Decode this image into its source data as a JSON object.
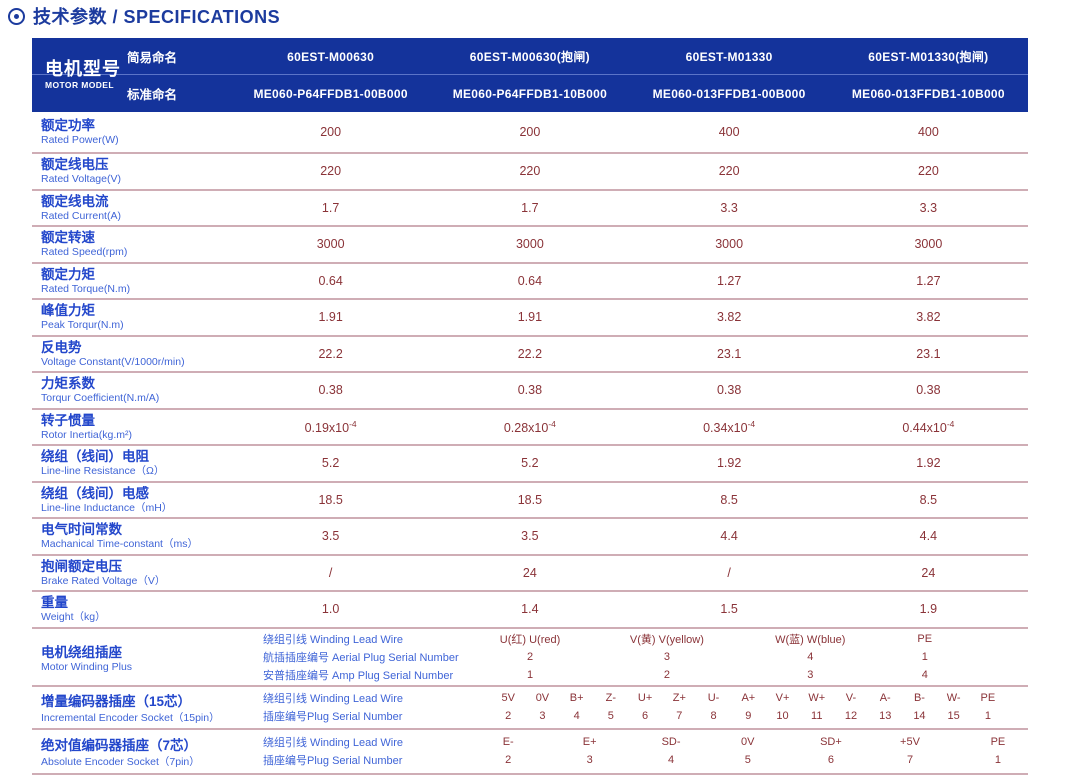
{
  "title": "技术参数 / SPECIFICATIONS",
  "header": {
    "model_label_zh": "电机型号",
    "model_label_en": "MOTOR MODEL",
    "simple_label": "简易命名",
    "standard_label": "标准命名",
    "simple_names": [
      "60EST-M00630",
      "60EST-M00630(抱闸)",
      "60EST-M01330",
      "60EST-M01330(抱闸)"
    ],
    "standard_names": [
      "ME060-P64FFDB1-00B000",
      "ME060-P64FFDB1-10B000",
      "ME060-013FFDB1-00B000",
      "ME060-013FFDB1-10B000"
    ]
  },
  "rows": [
    {
      "zh": "额定功率",
      "en": "Rated Power(W)",
      "values": [
        "200",
        "200",
        "400",
        "400"
      ]
    },
    {
      "zh": "额定线电压",
      "en": "Rated Voltage(V)",
      "values": [
        "220",
        "220",
        "220",
        "220"
      ]
    },
    {
      "zh": "额定线电流",
      "en": "Rated Current(A)",
      "values": [
        "1.7",
        "1.7",
        "3.3",
        "3.3"
      ]
    },
    {
      "zh": "额定转速",
      "en": "Rated Speed(rpm)",
      "values": [
        "3000",
        "3000",
        "3000",
        "3000"
      ]
    },
    {
      "zh": "额定力矩",
      "en": "Rated Torque(N.m)",
      "values": [
        "0.64",
        "0.64",
        "1.27",
        "1.27"
      ]
    },
    {
      "zh": "峰值力矩",
      "en": "Peak Torqur(N.m)",
      "values": [
        "1.91",
        "1.91",
        "3.82",
        "3.82"
      ]
    },
    {
      "zh": "反电势",
      "en": "Voltage Constant(V/1000r/min)",
      "values": [
        "22.2",
        "22.2",
        "23.1",
        "23.1"
      ]
    },
    {
      "zh": "力矩系数",
      "en": "Torqur Coefficient(N.m/A)",
      "values": [
        "0.38",
        "0.38",
        "0.38",
        "0.38"
      ]
    },
    {
      "zh": "转子惯量",
      "en": "Rotor Inertia(kg.m²)",
      "values": [
        "0.19x10",
        "0.28x10",
        "0.34x10",
        "0.44x10"
      ],
      "sup": "-4"
    },
    {
      "zh": "绕组（线间）电阻",
      "en": "Line-line Resistance（Ω）",
      "values": [
        "5.2",
        "5.2",
        "1.92",
        "1.92"
      ]
    },
    {
      "zh": "绕组（线间）电感",
      "en": "Line-line Inductance（mH）",
      "values": [
        "18.5",
        "18.5",
        "8.5",
        "8.5"
      ]
    },
    {
      "zh": "电气时间常数",
      "en": "Machanical Time-constant（ms）",
      "values": [
        "3.5",
        "3.5",
        "4.4",
        "4.4"
      ]
    },
    {
      "zh": "抱闸额定电压",
      "en": "Brake Rated Voltage（V）",
      "values": [
        "/",
        "24",
        "/",
        "24"
      ]
    },
    {
      "zh": "重量",
      "en": "Weight（kg）",
      "values": [
        "1.0",
        "1.4",
        "1.5",
        "1.9"
      ]
    }
  ],
  "winding": {
    "zh": "电机绕组插座",
    "en": "Motor Winding Plus",
    "sub1": "绕组引线 Winding Lead Wire",
    "sub2": "航插插座编号 Aerial Plug Serial Number",
    "sub3": "安普插座编号 Amp Plug Serial Number",
    "cols": [
      {
        "h": "U(红) U(red)",
        "aerial": "2",
        "amp": "1"
      },
      {
        "h": "V(黄) V(yellow)",
        "aerial": "3",
        "amp": "2"
      },
      {
        "h": "W(蓝) W(blue)",
        "aerial": "4",
        "amp": "3"
      },
      {
        "h": "PE",
        "aerial": "1",
        "amp": "4"
      }
    ]
  },
  "incremental": {
    "zh": "增量编码器插座（15芯）",
    "en": "Incremental Encoder Socket（15pin）",
    "sub1": "绕组引线 Winding Lead Wire",
    "sub2": "插座编号Plug Serial Number",
    "cols": [
      {
        "h": "5V",
        "n": "2"
      },
      {
        "h": "0V",
        "n": "3"
      },
      {
        "h": "B+",
        "n": "4"
      },
      {
        "h": "Z-",
        "n": "5"
      },
      {
        "h": "U+",
        "n": "6"
      },
      {
        "h": "Z+",
        "n": "7"
      },
      {
        "h": "U-",
        "n": "8"
      },
      {
        "h": "A+",
        "n": "9"
      },
      {
        "h": "V+",
        "n": "10"
      },
      {
        "h": "W+",
        "n": "11"
      },
      {
        "h": "V-",
        "n": "12"
      },
      {
        "h": "A-",
        "n": "13"
      },
      {
        "h": "B-",
        "n": "14"
      },
      {
        "h": "W-",
        "n": "15"
      },
      {
        "h": "PE",
        "n": "1"
      }
    ]
  },
  "absolute": {
    "zh": "绝对值编码器插座（7芯）",
    "en": "Absolute Encoder Socket（7pin）",
    "sub1": "绕组引线 Winding Lead Wire",
    "sub2": "插座编号Plug Serial Number",
    "cols": [
      {
        "h": "E-",
        "n": "2"
      },
      {
        "h": "E+",
        "n": "3"
      },
      {
        "h": "SD-",
        "n": "4"
      },
      {
        "h": "0V",
        "n": "5"
      },
      {
        "h": "SD+",
        "n": "6"
      },
      {
        "h": "+5V",
        "n": "7"
      },
      {
        "h": "PE",
        "n": "1"
      }
    ]
  },
  "colors": {
    "header_blue": "#14339b",
    "label_blue": "#2347cb",
    "value_maroon": "#8a3338",
    "line_pink": "#cfadb5"
  }
}
